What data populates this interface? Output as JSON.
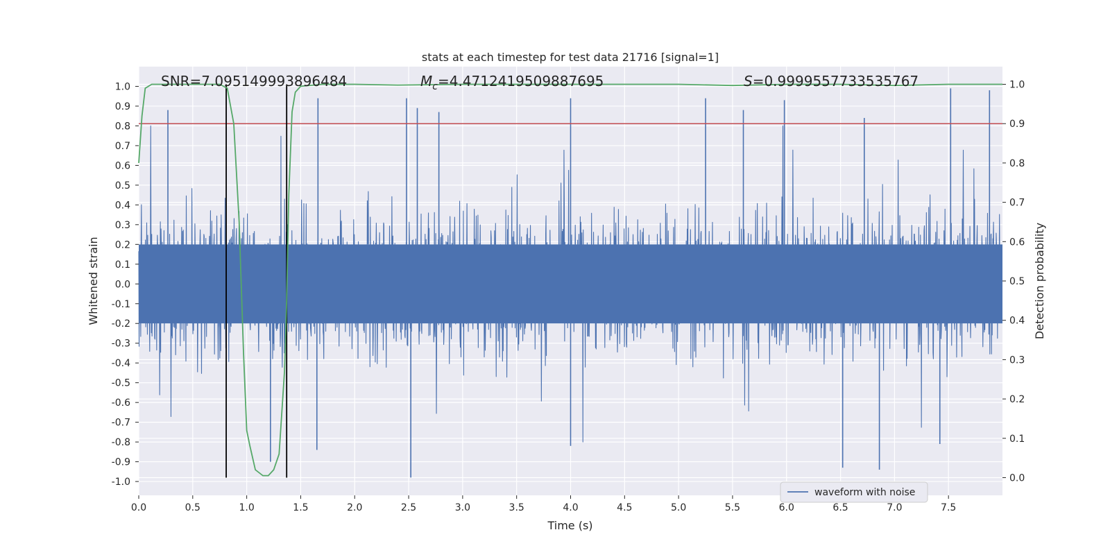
{
  "chart_data": {
    "type": "line",
    "title": "stats at each timestep for test data 21716 [signal=1]",
    "xlabel": "Time (s)",
    "ylabel_left": "Whitened strain",
    "ylabel_right": "Detection probability",
    "xlim": [
      0.0,
      8.0
    ],
    "ylim_left": [
      -1.07,
      1.1
    ],
    "ylim_right": [
      -0.045,
      1.045
    ],
    "x_ticks": [
      "0.0",
      "0.5",
      "1.0",
      "1.5",
      "2.0",
      "2.5",
      "3.0",
      "3.5",
      "4.0",
      "4.5",
      "5.0",
      "5.5",
      "6.0",
      "6.5",
      "7.0",
      "7.5"
    ],
    "x_tick_values": [
      0.0,
      0.5,
      1.0,
      1.5,
      2.0,
      2.5,
      3.0,
      3.5,
      4.0,
      4.5,
      5.0,
      5.5,
      6.0,
      6.5,
      7.0,
      7.5
    ],
    "y_left_ticks": [
      "1.0",
      "0.9",
      "0.8",
      "0.7",
      "0.6",
      "0.5",
      "0.4",
      "0.3",
      "0.2",
      "0.1",
      "0.0",
      "-0.1",
      "-0.2",
      "-0.3",
      "-0.4",
      "-0.5",
      "-0.6",
      "-0.7",
      "-0.8",
      "-0.9",
      "-1.0"
    ],
    "y_left_tick_values": [
      1.0,
      0.9,
      0.8,
      0.7,
      0.6,
      0.5,
      0.4,
      0.3,
      0.2,
      0.1,
      0.0,
      -0.1,
      -0.2,
      -0.3,
      -0.4,
      -0.5,
      -0.6,
      -0.7,
      -0.8,
      -0.9,
      -1.0
    ],
    "y_right_ticks": [
      "1.0",
      "0.9",
      "0.8",
      "0.7",
      "0.6",
      "0.5",
      "0.4",
      "0.3",
      "0.2",
      "0.1",
      "0.0"
    ],
    "y_right_tick_values": [
      1.0,
      0.9,
      0.8,
      0.7,
      0.6,
      0.5,
      0.4,
      0.3,
      0.2,
      0.1,
      0.0
    ],
    "annotations": {
      "snr_text": "SNR=7.095149993896484",
      "mc_symbol": "M",
      "mc_sub": "c",
      "mc_value": "=4.4712419509887695",
      "s_symbol": "S",
      "s_value": "=0.9999557733535767",
      "snr_x": 0.2,
      "mc_x": 2.6,
      "s_x": 5.6
    },
    "threshold": {
      "value": 0.9,
      "axis": "right",
      "color": "#c44e52"
    },
    "vertical_markers": [
      {
        "x": 0.81,
        "color": "#000000"
      },
      {
        "x": 1.37,
        "color": "#000000"
      }
    ],
    "series": [
      {
        "name": "waveform with noise",
        "axis": "left",
        "color": "#4c72b0",
        "description_stats": {
          "core_band": [
            -0.2,
            0.2
          ],
          "typical_envelope": [
            -0.45,
            0.4
          ]
        },
        "peaks": [
          {
            "x": 0.27,
            "y": 0.88
          },
          {
            "x": 1.66,
            "y": 0.94
          },
          {
            "x": 2.48,
            "y": 0.94
          },
          {
            "x": 2.58,
            "y": 0.89
          },
          {
            "x": 2.78,
            "y": 0.87
          },
          {
            "x": 4.0,
            "y": 0.94
          },
          {
            "x": 5.25,
            "y": 0.94
          },
          {
            "x": 5.6,
            "y": 0.88
          },
          {
            "x": 5.98,
            "y": 0.93
          },
          {
            "x": 6.72,
            "y": 0.84
          },
          {
            "x": 7.52,
            "y": 0.99
          },
          {
            "x": 7.88,
            "y": 0.98
          },
          {
            "x": 1.22,
            "y": -0.9
          },
          {
            "x": 2.52,
            "y": -0.98
          },
          {
            "x": 1.65,
            "y": -0.84
          },
          {
            "x": 4.0,
            "y": -0.82
          },
          {
            "x": 6.52,
            "y": -0.93
          },
          {
            "x": 6.86,
            "y": -0.94
          },
          {
            "x": 7.42,
            "y": -0.81
          }
        ]
      },
      {
        "name": "detection probability",
        "axis": "right",
        "color": "#55a868",
        "x": [
          0.0,
          0.03,
          0.06,
          0.12,
          0.2,
          0.4,
          0.6,
          0.75,
          0.82,
          0.88,
          0.93,
          0.97,
          1.0,
          1.03,
          1.08,
          1.15,
          1.2,
          1.25,
          1.3,
          1.35,
          1.37,
          1.39,
          1.42,
          1.45,
          1.5,
          1.7,
          2.0,
          2.4,
          3.0,
          4.0,
          5.0,
          5.5,
          6.0,
          6.5,
          7.0,
          7.5,
          8.0
        ],
        "y": [
          0.8,
          0.92,
          0.99,
          1.0,
          1.0,
          1.0,
          1.0,
          1.0,
          0.99,
          0.9,
          0.65,
          0.32,
          0.12,
          0.08,
          0.02,
          0.005,
          0.005,
          0.02,
          0.06,
          0.27,
          0.45,
          0.72,
          0.93,
          0.98,
          0.995,
          1.0,
          1.0,
          0.998,
          1.0,
          1.0,
          1.0,
          0.997,
          1.0,
          1.0,
          0.997,
          1.0,
          1.0
        ]
      }
    ],
    "legend": {
      "entries": [
        "waveform with noise"
      ],
      "placement": "bottom-right"
    },
    "grid": true
  }
}
